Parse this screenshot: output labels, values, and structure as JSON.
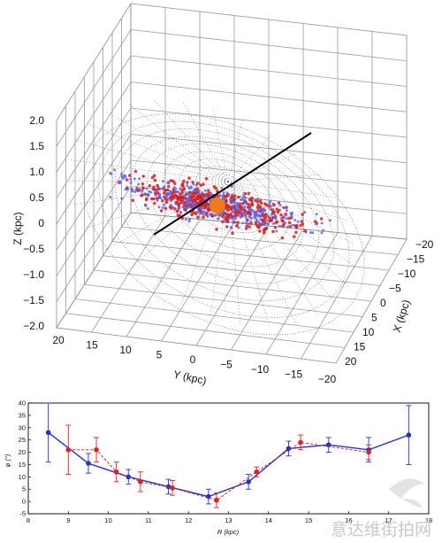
{
  "chart_data": [
    {
      "type": "scatter",
      "title": "",
      "axes": {
        "z_label": "Z (kpc)",
        "y_label": "Y (kpc)",
        "x_label": "X (kpc)",
        "z_ticks": [
          "2.0",
          "1.5",
          "1.0",
          "0.5",
          "0",
          "−0.5",
          "−1.0",
          "−1.5",
          "−2.0"
        ],
        "y_ticks": [
          "20",
          "15",
          "10",
          "5",
          "0",
          "−5",
          "−10",
          "−15",
          "−20"
        ],
        "x_ticks": [
          "−20",
          "−15",
          "−10",
          "−5",
          "0",
          "5",
          "10",
          "15",
          "20"
        ],
        "xlim": [
          -20,
          20
        ],
        "ylim": [
          -20,
          20
        ],
        "zlim": [
          -2,
          2
        ]
      },
      "series": [],
      "colors": {
        "red_points": "#d62020",
        "blue_points": "#5a6cf0",
        "sun": "#f07d1a",
        "disk_mesh": "#555555",
        "line": "#000000"
      },
      "grid": true
    },
    {
      "type": "line",
      "xlabel": "R (kpc)",
      "ylabel": "φ (°)",
      "xlim": [
        8,
        18
      ],
      "ylim": [
        -5,
        40
      ],
      "x_ticks": [
        "8",
        "9",
        "10",
        "11",
        "12",
        "13",
        "14",
        "15",
        "16",
        "17",
        "18"
      ],
      "y_ticks": [
        "-5",
        "0",
        "5",
        "10",
        "15",
        "20",
        "25",
        "30",
        "35",
        "40"
      ],
      "series": [
        {
          "color": "#2233cc",
          "style": "solid",
          "points": [
            {
              "x": 8.5,
              "y": 28.0,
              "err": 12.0
            },
            {
              "x": 9.5,
              "y": 15.5,
              "err": 4.0
            },
            {
              "x": 10.5,
              "y": 10.0,
              "err": 3.0
            },
            {
              "x": 11.5,
              "y": 6.0,
              "err": 3.0
            },
            {
              "x": 12.5,
              "y": 2.0,
              "err": 3.0
            },
            {
              "x": 13.5,
              "y": 8.0,
              "err": 3.0
            },
            {
              "x": 14.5,
              "y": 21.5,
              "err": 3.0
            },
            {
              "x": 15.5,
              "y": 23.0,
              "err": 3.0
            },
            {
              "x": 16.5,
              "y": 21.0,
              "err": 5.0
            },
            {
              "x": 17.5,
              "y": 27.0,
              "err": 12.0
            }
          ]
        },
        {
          "color": "#dd2222",
          "style": "dashed",
          "points": [
            {
              "x": 9.0,
              "y": 21.0,
              "err": 10.0
            },
            {
              "x": 9.7,
              "y": 21.0,
              "err": 5.0
            },
            {
              "x": 10.2,
              "y": 12.0,
              "err": 4.0
            },
            {
              "x": 10.8,
              "y": 8.0,
              "err": 4.0
            },
            {
              "x": 11.6,
              "y": 5.5,
              "err": 3.0
            },
            {
              "x": 12.7,
              "y": 0.5,
              "err": 3.0
            },
            {
              "x": 13.7,
              "y": 12.0,
              "err": 2.0
            },
            {
              "x": 14.8,
              "y": 24.0,
              "err": 3.0
            },
            {
              "x": 16.5,
              "y": 20.0,
              "err": 3.0
            }
          ]
        }
      ]
    }
  ],
  "watermark": "意达维街拍网"
}
